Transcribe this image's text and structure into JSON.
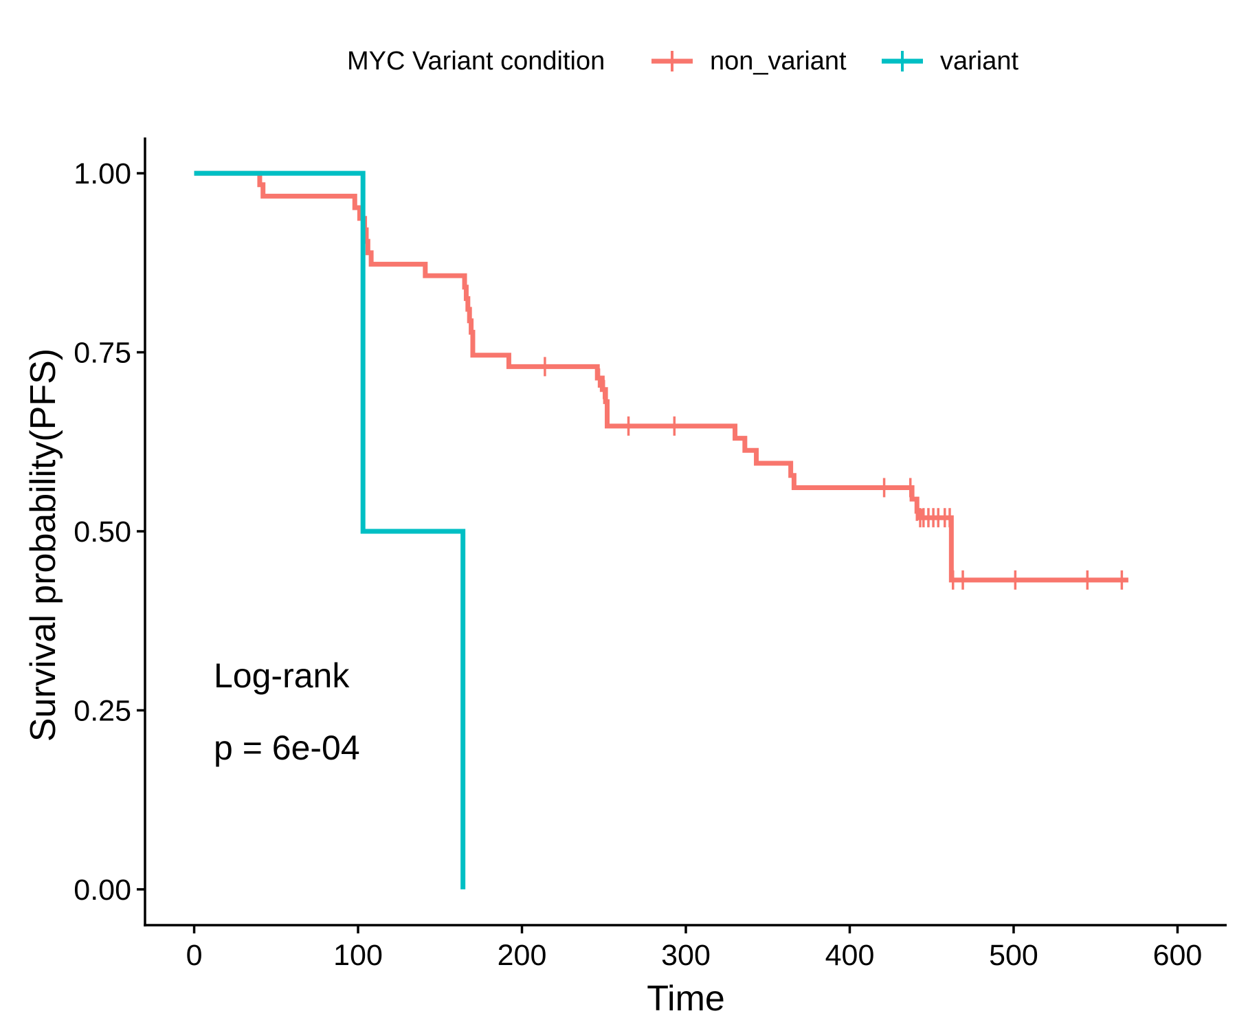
{
  "chart_data": {
    "type": "line",
    "subtype": "kaplan-meier survival curve",
    "xlabel": "Time",
    "ylabel": "Survival probability(PFS)",
    "xlim": [
      -30,
      630
    ],
    "ylim": [
      -0.05,
      1.05
    ],
    "x_ticks": [
      "0",
      "100",
      "200",
      "300",
      "400",
      "500",
      "600"
    ],
    "x_tick_values": [
      0,
      100,
      200,
      300,
      400,
      500,
      600
    ],
    "y_ticks": [
      "0.00",
      "0.25",
      "0.50",
      "0.75",
      "1.00"
    ],
    "y_tick_values": [
      0.0,
      0.25,
      0.5,
      0.75,
      1.0
    ],
    "grid": false,
    "legend_position": "top",
    "legend": {
      "title": "MYC Variant condition",
      "entries": [
        "non_variant",
        "variant"
      ]
    },
    "annotation": {
      "line1": "Log-rank",
      "line2": "p = 6e-04"
    },
    "series": [
      {
        "name": "non_variant",
        "color": "#F8766D",
        "steps": [
          [
            0,
            1.0
          ],
          [
            40,
            0.984
          ],
          [
            42,
            0.968
          ],
          [
            98,
            0.952
          ],
          [
            101,
            0.937
          ],
          [
            104,
            0.921
          ],
          [
            105,
            0.905
          ],
          [
            106,
            0.889
          ],
          [
            108,
            0.873
          ],
          [
            141,
            0.857
          ],
          [
            165,
            0.841
          ],
          [
            166,
            0.825
          ],
          [
            167,
            0.81
          ],
          [
            168,
            0.794
          ],
          [
            169,
            0.778
          ],
          [
            170,
            0.746
          ],
          [
            192,
            0.73
          ],
          [
            246,
            0.714
          ],
          [
            249,
            0.698
          ],
          [
            251,
            0.681
          ],
          [
            252,
            0.647
          ],
          [
            330,
            0.63
          ],
          [
            336,
            0.613
          ],
          [
            343,
            0.595
          ],
          [
            364,
            0.578
          ],
          [
            366,
            0.561
          ],
          [
            438,
            0.545
          ],
          [
            441,
            0.528
          ],
          [
            443,
            0.519
          ],
          [
            462,
            0.432
          ],
          [
            570,
            0.432
          ]
        ],
        "censor_times": [
          214,
          247,
          250,
          265,
          293,
          421,
          437,
          441,
          443,
          445,
          448,
          451,
          454,
          458,
          461,
          463,
          469,
          501,
          545,
          566
        ]
      },
      {
        "name": "variant",
        "color": "#00BFC4",
        "steps": [
          [
            0,
            1.0
          ],
          [
            103,
            0.5
          ],
          [
            164,
            0.0
          ]
        ],
        "censor_times": []
      }
    ]
  }
}
